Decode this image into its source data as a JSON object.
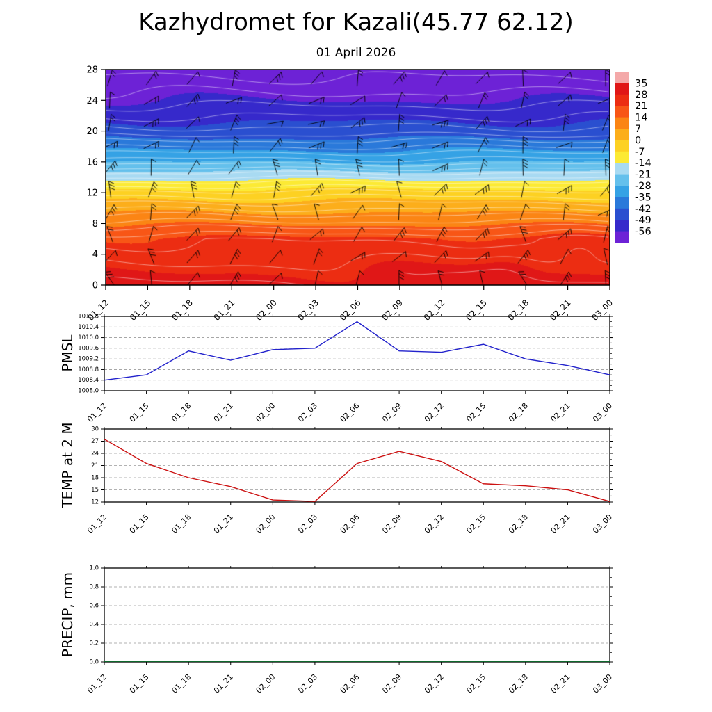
{
  "header": {
    "title": "Kazhydromet for Kazali(45.77 62.12)",
    "subtitle": "01 April 2026"
  },
  "chart_data": [
    {
      "type": "heatmap",
      "name": "temperature-wind-height-cross-section",
      "categories": [
        "01_12",
        "01_15",
        "01_18",
        "01_21",
        "02_00",
        "02_03",
        "02_06",
        "02_09",
        "02_12",
        "02_15",
        "02_18",
        "02_21",
        "03_00"
      ],
      "y_ticks": [
        0,
        4,
        8,
        12,
        16,
        20,
        24,
        28
      ],
      "y_range": [
        0,
        28
      ],
      "profile": {
        "height_km": [
          0,
          6,
          12,
          16,
          20,
          24,
          28
        ],
        "temp_c": [
          30,
          22,
          -4,
          -28,
          -46,
          -56,
          -63
        ]
      },
      "overlays": {
        "wind_barbs": {
          "columns": 13,
          "rows": 10
        },
        "contour_color": "#ffffff"
      },
      "colorbar": {
        "boundary_labels": [
          35,
          28,
          21,
          14,
          7,
          0,
          -7,
          -14,
          -21,
          -28,
          -35,
          -42,
          -49,
          -56
        ],
        "band_colors": [
          "#f4a9a9",
          "#e01717",
          "#ec2d12",
          "#f85616",
          "#fb8514",
          "#fcae1b",
          "#fdd122",
          "#fcea34",
          "#a8daf2",
          "#64c0ec",
          "#35a2e5",
          "#2a79da",
          "#2a4fd0",
          "#3629cb",
          "#6d22d6"
        ]
      }
    },
    {
      "type": "line",
      "name": "pmsl",
      "ylabel": "PMSL",
      "color": "#2222cc",
      "tick_decimals": 1,
      "categories": [
        "01_12",
        "01_15",
        "01_18",
        "01_21",
        "02_00",
        "02_03",
        "02_06",
        "02_09",
        "02_12",
        "02_15",
        "02_18",
        "02_21",
        "03_00"
      ],
      "y_ticks": [
        1008.0,
        1008.4,
        1008.8,
        1009.2,
        1009.6,
        1010.0,
        1010.4,
        1010.8
      ],
      "values": [
        1008.4,
        1008.6,
        1009.5,
        1009.15,
        1009.55,
        1009.6,
        1010.6,
        1009.5,
        1009.45,
        1009.75,
        1009.2,
        1008.95,
        1008.6
      ]
    },
    {
      "type": "line",
      "name": "temp-2m",
      "ylabel": "TEMP at 2 M",
      "color": "#cc1111",
      "tick_decimals": 0,
      "categories": [
        "01_12",
        "01_15",
        "01_18",
        "01_21",
        "02_00",
        "02_03",
        "02_06",
        "02_09",
        "02_12",
        "02_15",
        "02_18",
        "02_21",
        "03_00"
      ],
      "y_ticks": [
        12,
        15,
        18,
        21,
        24,
        27,
        30
      ],
      "values": [
        27.5,
        21.5,
        18,
        15.8,
        12.5,
        12,
        21.5,
        24.5,
        22,
        16.5,
        16,
        15,
        12
      ]
    },
    {
      "type": "line",
      "name": "precip",
      "ylabel": "PRECIP, mm",
      "color": "#117733",
      "tick_decimals": 1,
      "categories": [
        "01_12",
        "01_15",
        "01_18",
        "01_21",
        "02_00",
        "02_03",
        "02_06",
        "02_09",
        "02_12",
        "02_15",
        "02_18",
        "02_21",
        "03_00"
      ],
      "y_ticks": [
        0.0,
        0.2,
        0.4,
        0.6,
        0.8,
        1.0
      ],
      "values": [
        0,
        0,
        0,
        0,
        0,
        0,
        0,
        0,
        0,
        0,
        0,
        0,
        0
      ]
    }
  ]
}
